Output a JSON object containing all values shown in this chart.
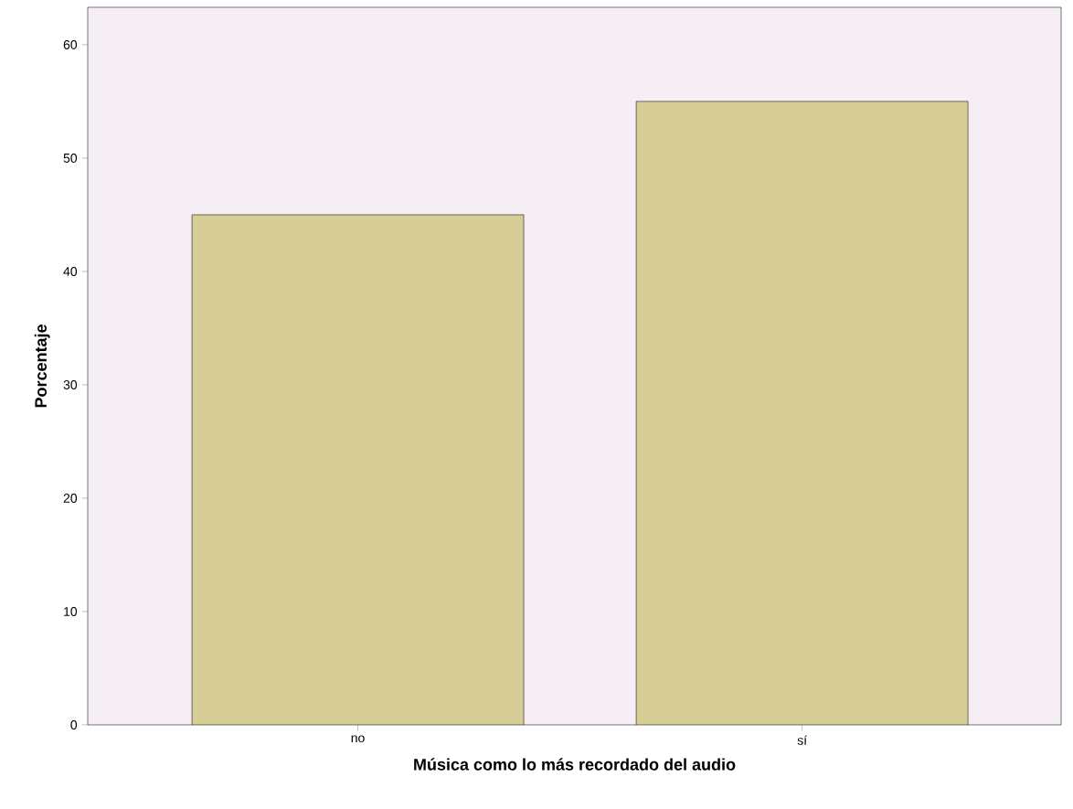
{
  "chart_data": {
    "type": "bar",
    "xlabel": "Música como lo más recordado del audio",
    "ylabel": "Porcentaje",
    "categories": [
      "no",
      "sí"
    ],
    "values": [
      45,
      55
    ],
    "color": "#d6ce96",
    "ylim": [
      0,
      63.3
    ],
    "yticks": [
      0,
      10,
      20,
      30,
      40,
      50,
      60
    ],
    "grid": false
  }
}
